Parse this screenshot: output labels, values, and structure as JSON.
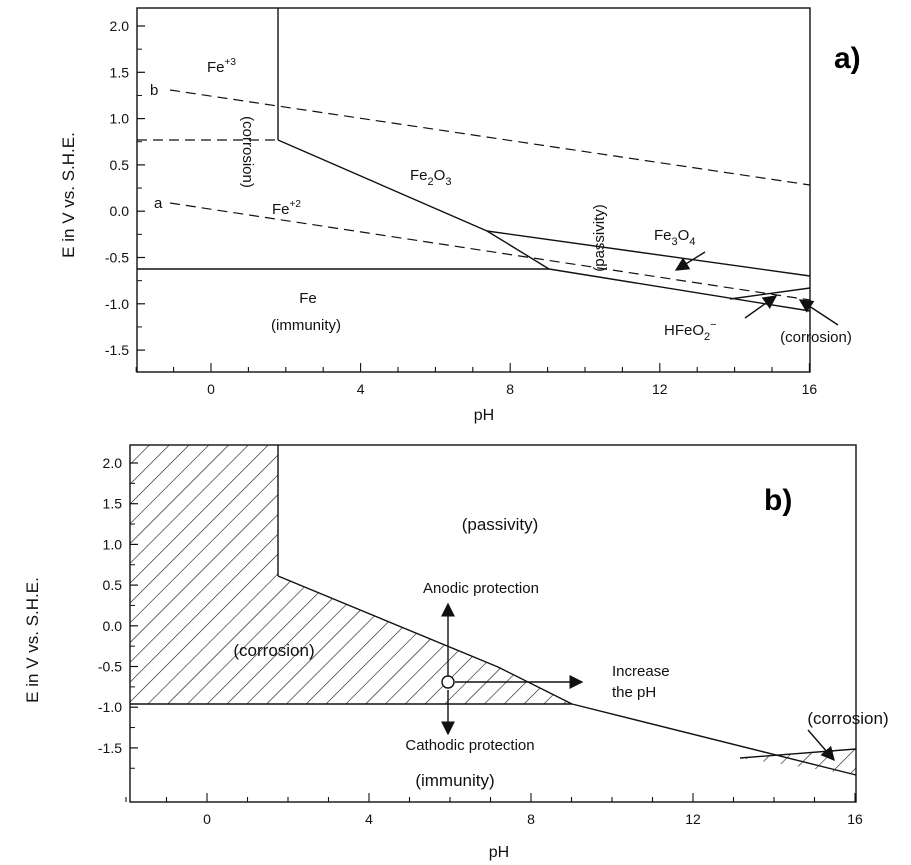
{
  "panel_a": {
    "tag": "a)",
    "ylabel": "E in V vs. S.H.E.",
    "xlabel": "pH",
    "x_ticks": [
      "0",
      "4",
      "8",
      "12",
      "16"
    ],
    "y_ticks": [
      "2.0",
      "1.5",
      "1.0",
      "0.5",
      "0.0",
      "-0.5",
      "-1.0",
      "-1.5"
    ],
    "labels": {
      "fe3": "Fe",
      "fe3_sup": "+3",
      "fe2": "Fe",
      "fe2_sup": "+2",
      "fe2o3_a": "Fe",
      "fe2o3_sub": "2",
      "fe2o3_b": "O",
      "fe2o3_sub2": "3",
      "fe3o4_a": "Fe",
      "fe3o4_sub": "3",
      "fe3o4_b": "O",
      "fe3o4_sub2": "4",
      "fe": "Fe",
      "immunity": "(immunity)",
      "hfeo2_a": "HFeO",
      "hfeo2_sub": "2",
      "hfeo2_sup": "−",
      "corrosion_right": "(corrosion)",
      "corrosion_vertical": "(corrosion)",
      "passivity_rotated": "(passivity)",
      "line_a": "a",
      "line_b": "b"
    }
  },
  "panel_b": {
    "tag": "b)",
    "ylabel": "E in V vs. S.H.E.",
    "xlabel": "pH",
    "x_ticks": [
      "0",
      "4",
      "8",
      "12",
      "16"
    ],
    "y_ticks": [
      "2.0",
      "1.5",
      "1.0",
      "0.5",
      "0.0",
      "-0.5",
      "-1.0",
      "-1.5"
    ],
    "labels": {
      "passivity": "(passivity)",
      "corrosion_left": "(corrosion)",
      "corrosion_right": "(corrosion)",
      "immunity": "(immunity)",
      "anodic": "Anodic protection",
      "cathodic": "Cathodic protection",
      "increase_line1": "Increase",
      "increase_line2": "the pH"
    }
  }
}
